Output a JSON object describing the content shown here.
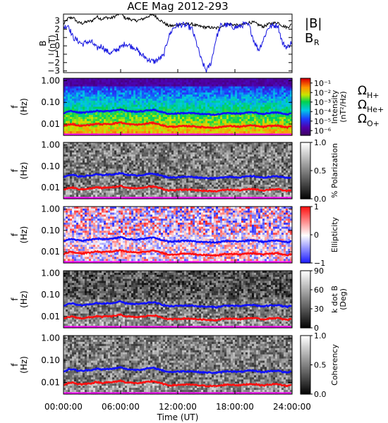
{
  "title": "ACE Mag 2012-293",
  "x_axis": {
    "label": "Time (UT)",
    "range_hours": [
      0,
      24
    ],
    "ticks": [
      {
        "hour": 0,
        "label": "00:00:00"
      },
      {
        "hour": 6,
        "label": "06:00:00"
      },
      {
        "hour": 12,
        "label": "12:00:00"
      },
      {
        "hour": 18,
        "label": "18:00:00"
      },
      {
        "hour": 24,
        "label": "24:00:00"
      }
    ]
  },
  "colors": {
    "B_total": "#000000",
    "B_R": "#1515e0",
    "H_plus": "#1010ff",
    "He_plus": "#ff1010",
    "O_plus": "#ff00ff"
  },
  "chart_data": [
    {
      "id": "field",
      "type": "line",
      "ylabel": [
        "B",
        "(nT)"
      ],
      "ylim": [
        -3.2,
        3.8
      ],
      "ticks": [
        3,
        2,
        1,
        0,
        -1,
        -2,
        -3
      ],
      "legend": [
        {
          "text": "|B|",
          "sub": "",
          "color": "#000000"
        },
        {
          "text": "B",
          "sub": "R",
          "color": "#1515e0"
        }
      ],
      "x_hours": [
        0,
        0.5,
        1,
        1.5,
        2,
        2.5,
        3,
        3.5,
        4,
        4.5,
        5,
        5.5,
        6,
        6.5,
        7,
        7.5,
        8,
        8.5,
        9,
        9.5,
        10,
        10.5,
        11,
        11.5,
        12,
        12.5,
        13,
        13.5,
        14,
        14.5,
        15,
        15.5,
        16,
        16.5,
        17,
        17.5,
        18,
        18.5,
        19,
        19.5,
        20,
        20.5,
        21,
        21.5,
        22,
        22.5,
        23,
        23.5,
        24
      ],
      "series": [
        {
          "name": "|B|",
          "color": "#000000",
          "values": [
            2.6,
            3.3,
            3.4,
            2.8,
            2.7,
            2.9,
            3.0,
            3.5,
            3.2,
            3.4,
            3.3,
            3.6,
            3.9,
            3.3,
            3.2,
            3.0,
            3.1,
            3.3,
            3.6,
            3.7,
            3.2,
            2.8,
            2.4,
            2.4,
            2.5,
            2.6,
            2.6,
            2.6,
            2.4,
            2.3,
            2.2,
            2.2,
            2.1,
            2.3,
            2.6,
            2.6,
            2.5,
            2.4,
            2.6,
            2.8,
            2.8,
            2.5,
            2.3,
            2.6,
            2.7,
            2.8,
            2.4,
            2.2,
            2.6
          ]
        },
        {
          "name": "B_R",
          "color": "#1515e0",
          "values": [
            2.2,
            2.5,
            1.0,
            0.6,
            0.2,
            0.5,
            0.4,
            -0.3,
            0.0,
            -0.6,
            -0.9,
            -0.5,
            -0.2,
            0.3,
            0.0,
            -0.2,
            -0.9,
            -1.3,
            -1.7,
            -1.9,
            -1.6,
            -1.2,
            1.0,
            2.1,
            2.5,
            2.5,
            2.4,
            2.0,
            0.2,
            -1.8,
            -3.0,
            -2.0,
            0.8,
            2.4,
            2.5,
            2.4,
            2.2,
            2.3,
            2.6,
            2.4,
            0.6,
            -0.5,
            0.8,
            2.2,
            2.4,
            2.5,
            0.3,
            -0.2,
            0.5
          ]
        }
      ]
    },
    {
      "id": "intensity",
      "type": "heatmap",
      "ylabel": [
        "f",
        "(Hz)"
      ],
      "yscale": "log",
      "ylim": [
        0.003,
        1.3
      ],
      "ticks": [
        {
          "value": 1.0,
          "label": "1.00"
        },
        {
          "value": 0.1,
          "label": "0.10"
        },
        {
          "value": 0.01,
          "label": "0.01"
        }
      ],
      "palette": "rainbow",
      "colorbar": {
        "label": [
          "Intensity",
          "(nT²/Hz)"
        ],
        "ticks": [
          {
            "exp": -1,
            "label": "10⁻¹"
          },
          {
            "exp": -2,
            "label": "10⁻²"
          },
          {
            "exp": -3,
            "label": "10⁻³"
          },
          {
            "exp": -4,
            "label": "10⁻⁴"
          },
          {
            "exp": -5,
            "label": "10⁻⁵"
          },
          {
            "exp": -6,
            "label": "10⁻⁶"
          }
        ],
        "range": [
          -6.5,
          -0.5
        ]
      },
      "legend": [
        {
          "text": "Ω",
          "sub": "H+",
          "color": "#1010ff"
        },
        {
          "text": "Ω",
          "sub": "He+",
          "color": "#ff1010"
        },
        {
          "text": "Ω",
          "sub": "O+",
          "color": "#ff00ff"
        }
      ]
    },
    {
      "id": "polarization",
      "type": "heatmap",
      "ylabel": [
        "f",
        "(Hz)"
      ],
      "yscale": "log",
      "ticks": [
        {
          "value": 1.0,
          "label": "1.00"
        },
        {
          "value": 0.1,
          "label": "0.10"
        },
        {
          "value": 0.01,
          "label": "0.01"
        }
      ],
      "palette": "gray",
      "colorbar": {
        "label": [
          "% Polarization"
        ],
        "ticks": [
          {
            "value": 1.0,
            "label": "1.0"
          },
          {
            "value": 0.5,
            "label": "0.5"
          },
          {
            "value": 0.0,
            "label": "0.0"
          }
        ],
        "range": [
          0,
          1
        ]
      }
    },
    {
      "id": "ellipticity",
      "type": "heatmap",
      "ylabel": [
        "f",
        "(Hz)"
      ],
      "yscale": "log",
      "ticks": [
        {
          "value": 1.0,
          "label": "1.00"
        },
        {
          "value": 0.1,
          "label": "0.10"
        },
        {
          "value": 0.01,
          "label": "0.01"
        }
      ],
      "palette": "bwr",
      "colorbar": {
        "label": [
          "Ellipticity"
        ],
        "ticks": [
          {
            "value": 1,
            "label": "1"
          },
          {
            "value": 0,
            "label": "0"
          },
          {
            "value": -1,
            "label": "−1"
          }
        ],
        "range": [
          -1,
          1
        ]
      }
    },
    {
      "id": "kdotb",
      "type": "heatmap",
      "ylabel": [
        "f",
        "(Hz)"
      ],
      "yscale": "log",
      "ticks": [
        {
          "value": 1.0,
          "label": "1.00"
        },
        {
          "value": 0.1,
          "label": "0.10"
        },
        {
          "value": 0.01,
          "label": "0.01"
        }
      ],
      "palette": "gray",
      "colorbar": {
        "label": [
          "k dot B",
          "(Deg)"
        ],
        "ticks": [
          {
            "value": 90,
            "label": "90"
          },
          {
            "value": 60,
            "label": "60"
          },
          {
            "value": 30,
            "label": "30"
          },
          {
            "value": 0,
            "label": "0"
          }
        ],
        "range": [
          0,
          90
        ]
      }
    },
    {
      "id": "coherency",
      "type": "heatmap",
      "ylabel": [
        "f",
        "(Hz)"
      ],
      "yscale": "log",
      "ticks": [
        {
          "value": 1.0,
          "label": "1.00"
        },
        {
          "value": 0.1,
          "label": "0.10"
        },
        {
          "value": 0.01,
          "label": "0.01"
        }
      ],
      "palette": "gray",
      "colorbar": {
        "label": [
          "Coherency"
        ],
        "ticks": [
          {
            "value": 1.0,
            "label": "1.0"
          },
          {
            "value": 0.5,
            "label": "0.5"
          },
          {
            "value": 0.0,
            "label": "0.0"
          }
        ],
        "range": [
          0,
          1
        ]
      }
    }
  ],
  "gyrofrequency_lines": {
    "x_hours": [
      0,
      0.5,
      1,
      1.5,
      2,
      2.5,
      3,
      3.5,
      4,
      4.5,
      5,
      5.5,
      6,
      6.5,
      7,
      7.5,
      8,
      8.5,
      9,
      9.5,
      10,
      10.5,
      11,
      11.5,
      12,
      12.5,
      13,
      13.5,
      14,
      14.5,
      15,
      15.5,
      16,
      16.5,
      17,
      17.5,
      18,
      18.5,
      19,
      19.5,
      20,
      20.5,
      21,
      21.5,
      22,
      22.5,
      23,
      23.5,
      24
    ],
    "series": [
      {
        "name": "H+",
        "color": "#1010ff",
        "values_hz": [
          0.031,
          0.038,
          0.04,
          0.034,
          0.033,
          0.036,
          0.037,
          0.042,
          0.038,
          0.041,
          0.04,
          0.044,
          0.048,
          0.041,
          0.039,
          0.037,
          0.038,
          0.04,
          0.044,
          0.045,
          0.039,
          0.034,
          0.03,
          0.03,
          0.031,
          0.032,
          0.032,
          0.032,
          0.03,
          0.029,
          0.028,
          0.028,
          0.027,
          0.029,
          0.032,
          0.032,
          0.031,
          0.03,
          0.032,
          0.034,
          0.034,
          0.031,
          0.029,
          0.032,
          0.033,
          0.034,
          0.03,
          0.028,
          0.032
        ]
      },
      {
        "name": "He+",
        "color": "#ff1010",
        "values_hz": [
          0.0078,
          0.0095,
          0.01,
          0.0085,
          0.0083,
          0.009,
          0.0093,
          0.0105,
          0.0095,
          0.0103,
          0.01,
          0.011,
          0.012,
          0.0103,
          0.0098,
          0.0093,
          0.0095,
          0.01,
          0.011,
          0.0113,
          0.0098,
          0.0085,
          0.0075,
          0.0075,
          0.0078,
          0.008,
          0.008,
          0.008,
          0.0075,
          0.0073,
          0.007,
          0.007,
          0.0068,
          0.0073,
          0.008,
          0.008,
          0.0078,
          0.0075,
          0.008,
          0.0085,
          0.0085,
          0.0078,
          0.0073,
          0.008,
          0.0083,
          0.0085,
          0.0075,
          0.007,
          0.008
        ]
      },
      {
        "name": "O+",
        "color": "#ff00ff",
        "values_hz": [
          0.0019,
          0.0024,
          0.0025,
          0.0021,
          0.0021,
          0.0022,
          0.0023,
          0.0026,
          0.0024,
          0.0026,
          0.0025,
          0.0028,
          0.003,
          0.0026,
          0.0024,
          0.0023,
          0.0024,
          0.0025,
          0.0028,
          0.0028,
          0.0024,
          0.0021,
          0.0019,
          0.0019,
          0.0019,
          0.002,
          0.002,
          0.002,
          0.0019,
          0.0018,
          0.0017,
          0.0017,
          0.0017,
          0.0018,
          0.002,
          0.002,
          0.0019,
          0.0019,
          0.002,
          0.0021,
          0.0021,
          0.0019,
          0.0018,
          0.002,
          0.0021,
          0.0021,
          0.0019,
          0.0017,
          0.002
        ]
      }
    ]
  }
}
